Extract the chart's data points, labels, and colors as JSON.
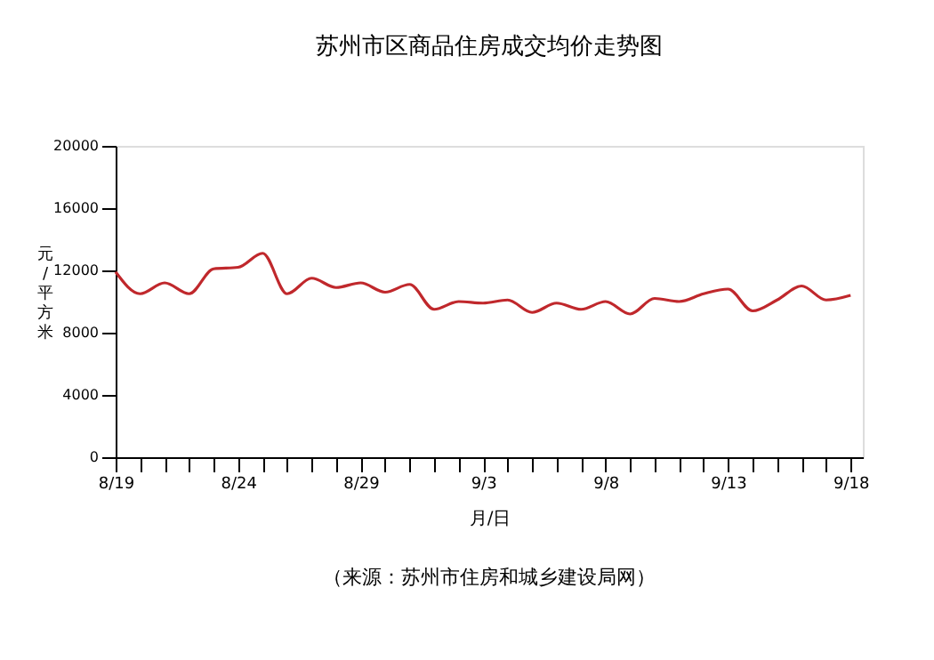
{
  "chart_data": {
    "type": "line",
    "title": "苏州市区商品住房成交均价走势图",
    "xlabel": "月/日",
    "ylabel": "元/平方米",
    "categories": [
      "8/19",
      null,
      null,
      null,
      null,
      "8/24",
      null,
      null,
      null,
      null,
      "8/29",
      null,
      null,
      null,
      null,
      "9/3",
      null,
      null,
      null,
      null,
      "9/8",
      null,
      null,
      null,
      null,
      "9/13",
      null,
      null,
      null,
      null,
      "9/18"
    ],
    "series": [
      {
        "color": "#c0282c",
        "values": [
          11900,
          10500,
          11200,
          10500,
          12100,
          12200,
          13100,
          10500,
          11500,
          10900,
          11200,
          10600,
          11100,
          9500,
          10000,
          9900,
          10100,
          9300,
          9900,
          9500,
          10000,
          9200,
          10200,
          10000,
          10500,
          10800,
          9400,
          10100,
          11000,
          10100,
          10400
        ]
      }
    ],
    "ylim": [
      0,
      20000
    ],
    "yticks": [
      0,
      4000,
      8000,
      12000,
      16000,
      20000
    ],
    "grid": false,
    "legend": false,
    "marker": "none",
    "line_style": "solid",
    "annotations": [
      "（来源：苏州市住房和城乡建设局网）"
    ]
  }
}
